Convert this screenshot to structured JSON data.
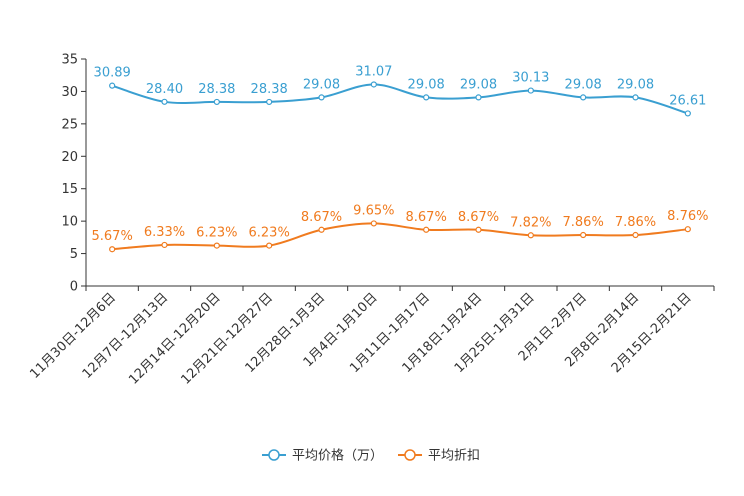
{
  "chart_data": {
    "type": "line",
    "categories": [
      "11月30日-12月6日",
      "12月7日-12月13日",
      "12月14日-12月20日",
      "12月21日-12月27日",
      "12月28日-1月3日",
      "1月4日-1月10日",
      "1月11日-1月17日",
      "1月18日-1月24日",
      "1月25日-1月31日",
      "2月1日-2月7日",
      "2月8日-2月14日",
      "2月15日-2月21日"
    ],
    "ylim": [
      0,
      35
    ],
    "yticks": [
      0,
      5,
      10,
      15,
      20,
      25,
      30,
      35
    ],
    "grid": false,
    "legend_position": "bottom-center",
    "series": [
      {
        "name": "平均价格（万）",
        "color": "#3a9fd1",
        "values": [
          30.89,
          28.4,
          28.38,
          28.38,
          29.08,
          31.07,
          29.08,
          29.08,
          30.13,
          29.08,
          29.08,
          26.61
        ],
        "labels": [
          "30.89",
          "28.40",
          "28.38",
          "28.38",
          "29.08",
          "31.07",
          "29.08",
          "29.08",
          "30.13",
          "29.08",
          "29.08",
          "26.61"
        ]
      },
      {
        "name": "平均折扣",
        "color": "#f07b1f",
        "values": [
          5.67,
          6.33,
          6.23,
          6.23,
          8.67,
          9.65,
          8.67,
          8.67,
          7.82,
          7.86,
          7.86,
          8.76
        ],
        "labels": [
          "5.67%",
          "6.33%",
          "6.23%",
          "6.23%",
          "8.67%",
          "9.65%",
          "8.67%",
          "8.67%",
          "7.82%",
          "7.86%",
          "7.86%",
          "8.76%"
        ]
      }
    ]
  }
}
